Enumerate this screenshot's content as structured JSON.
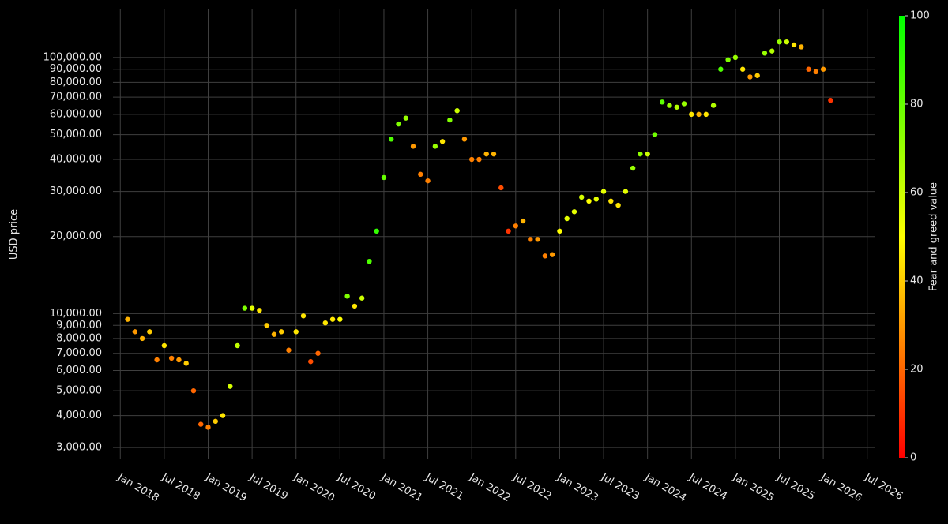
{
  "chart_data": {
    "type": "scatter",
    "y_label": "USD price",
    "log_y": true,
    "grid": true,
    "background": "#000000",
    "xlim": [
      "2017-12",
      "2026-08"
    ],
    "ylim": [
      2700,
      154000
    ],
    "xticks": [
      {
        "value": "2018-01",
        "label": "Jan 2018"
      },
      {
        "value": "2018-07",
        "label": "Jul 2018"
      },
      {
        "value": "2019-01",
        "label": "Jan 2019"
      },
      {
        "value": "2019-07",
        "label": "Jul 2019"
      },
      {
        "value": "2020-01",
        "label": "Jan 2020"
      },
      {
        "value": "2020-07",
        "label": "Jul 2020"
      },
      {
        "value": "2021-01",
        "label": "Jan 2021"
      },
      {
        "value": "2021-07",
        "label": "Jul 2021"
      },
      {
        "value": "2022-01",
        "label": "Jan 2022"
      },
      {
        "value": "2022-07",
        "label": "Jul 2022"
      },
      {
        "value": "2023-01",
        "label": "Jan 2023"
      },
      {
        "value": "2023-07",
        "label": "Jul 2023"
      },
      {
        "value": "2024-01",
        "label": "Jan 2024"
      },
      {
        "value": "2024-07",
        "label": "Jul 2024"
      },
      {
        "value": "2025-01",
        "label": "Jan 2025"
      },
      {
        "value": "2025-07",
        "label": "Jul 2025"
      },
      {
        "value": "2026-01",
        "label": "Jan 2026"
      },
      {
        "value": "2026-07",
        "label": "Jul 2026"
      }
    ],
    "yticks": [
      {
        "value": 3000,
        "label": "3,000.00"
      },
      {
        "value": 4000,
        "label": "4,000.00"
      },
      {
        "value": 5000,
        "label": "5,000.00"
      },
      {
        "value": 6000,
        "label": "6,000.00"
      },
      {
        "value": 7000,
        "label": "7,000.00"
      },
      {
        "value": 8000,
        "label": "8,000.00"
      },
      {
        "value": 9000,
        "label": "9,000.00"
      },
      {
        "value": 10000,
        "label": "10,000.00"
      },
      {
        "value": 20000,
        "label": "20,000.00"
      },
      {
        "value": 30000,
        "label": "30,000.00"
      },
      {
        "value": 40000,
        "label": "40,000.00"
      },
      {
        "value": 50000,
        "label": "50,000.00"
      },
      {
        "value": 60000,
        "label": "60,000.00"
      },
      {
        "value": 70000,
        "label": "70,000.00"
      },
      {
        "value": 80000,
        "label": "80,000.00"
      },
      {
        "value": 90000,
        "label": "90,000.00"
      },
      {
        "value": 100000,
        "label": "100,000.00"
      }
    ],
    "x": [
      "2018-02",
      "2018-03",
      "2018-04",
      "2018-05",
      "2018-06",
      "2018-07",
      "2018-08",
      "2018-09",
      "2018-10",
      "2018-11",
      "2018-12",
      "2019-01",
      "2019-02",
      "2019-03",
      "2019-04",
      "2019-05",
      "2019-06",
      "2019-07",
      "2019-08",
      "2019-09",
      "2019-10",
      "2019-11",
      "2019-12",
      "2020-01",
      "2020-02",
      "2020-03",
      "2020-04",
      "2020-05",
      "2020-06",
      "2020-07",
      "2020-08",
      "2020-09",
      "2020-10",
      "2020-11",
      "2020-12",
      "2021-01",
      "2021-02",
      "2021-03",
      "2021-04",
      "2021-05",
      "2021-06",
      "2021-07",
      "2021-08",
      "2021-09",
      "2021-10",
      "2021-11",
      "2021-12",
      "2022-01",
      "2022-02",
      "2022-03",
      "2022-04",
      "2022-05",
      "2022-06",
      "2022-07",
      "2022-08",
      "2022-09",
      "2022-10",
      "2022-11",
      "2022-12",
      "2023-01",
      "2023-02",
      "2023-03",
      "2023-04",
      "2023-05",
      "2023-06",
      "2023-07",
      "2023-08",
      "2023-09",
      "2023-10",
      "2023-11",
      "2023-12",
      "2024-01",
      "2024-02",
      "2024-03",
      "2024-04",
      "2024-05",
      "2024-06",
      "2024-07",
      "2024-08",
      "2024-09",
      "2024-10",
      "2024-11",
      "2024-12",
      "2025-01",
      "2025-02",
      "2025-03",
      "2025-04",
      "2025-05",
      "2025-06",
      "2025-07",
      "2025-08",
      "2025-09",
      "2025-10",
      "2025-11",
      "2025-12",
      "2026-01",
      "2026-02"
    ],
    "values": [
      9500,
      8500,
      8000,
      8500,
      6600,
      7500,
      6700,
      6600,
      6400,
      5000,
      3700,
      3600,
      3800,
      4000,
      5200,
      7500,
      10500,
      10500,
      10300,
      9000,
      8300,
      8500,
      7200,
      8500,
      9800,
      6500,
      7000,
      9200,
      9500,
      9500,
      11700,
      10700,
      11500,
      16000,
      21000,
      34000,
      48000,
      55000,
      58000,
      45000,
      35000,
      33000,
      45000,
      47000,
      57000,
      62000,
      48000,
      40000,
      40000,
      42000,
      42000,
      31000,
      21000,
      22000,
      23000,
      19500,
      19500,
      16800,
      17000,
      21000,
      23500,
      25000,
      28500,
      27500,
      28000,
      30000,
      27500,
      26500,
      30000,
      37000,
      42000,
      42000,
      50000,
      67000,
      65000,
      64000,
      66000,
      60000,
      60000,
      60000,
      65000,
      90000,
      98000,
      100000,
      90000,
      84000,
      85000,
      104000,
      106000,
      115000,
      115000,
      112000,
      110000,
      90000,
      88000,
      90000,
      68000
    ],
    "color_values": [
      35,
      30,
      35,
      40,
      25,
      45,
      25,
      30,
      40,
      20,
      20,
      25,
      40,
      45,
      58,
      62,
      75,
      55,
      45,
      40,
      35,
      40,
      25,
      45,
      45,
      15,
      20,
      45,
      45,
      50,
      75,
      45,
      60,
      85,
      90,
      80,
      85,
      75,
      70,
      30,
      25,
      25,
      70,
      45,
      75,
      60,
      30,
      25,
      25,
      35,
      35,
      15,
      10,
      25,
      35,
      25,
      30,
      25,
      30,
      50,
      55,
      55,
      58,
      50,
      55,
      55,
      45,
      45,
      55,
      70,
      72,
      60,
      78,
      82,
      70,
      65,
      70,
      45,
      35,
      45,
      65,
      85,
      75,
      70,
      45,
      30,
      40,
      70,
      65,
      70,
      60,
      45,
      35,
      20,
      25,
      30,
      10
    ],
    "colorscale": [
      "#ff0000",
      "#ffff00",
      "#00ff00"
    ],
    "colorbar": {
      "label": "Fear and greed value",
      "lim": [
        0,
        100
      ],
      "ticks": [
        0,
        20,
        40,
        60,
        80,
        100
      ]
    }
  }
}
